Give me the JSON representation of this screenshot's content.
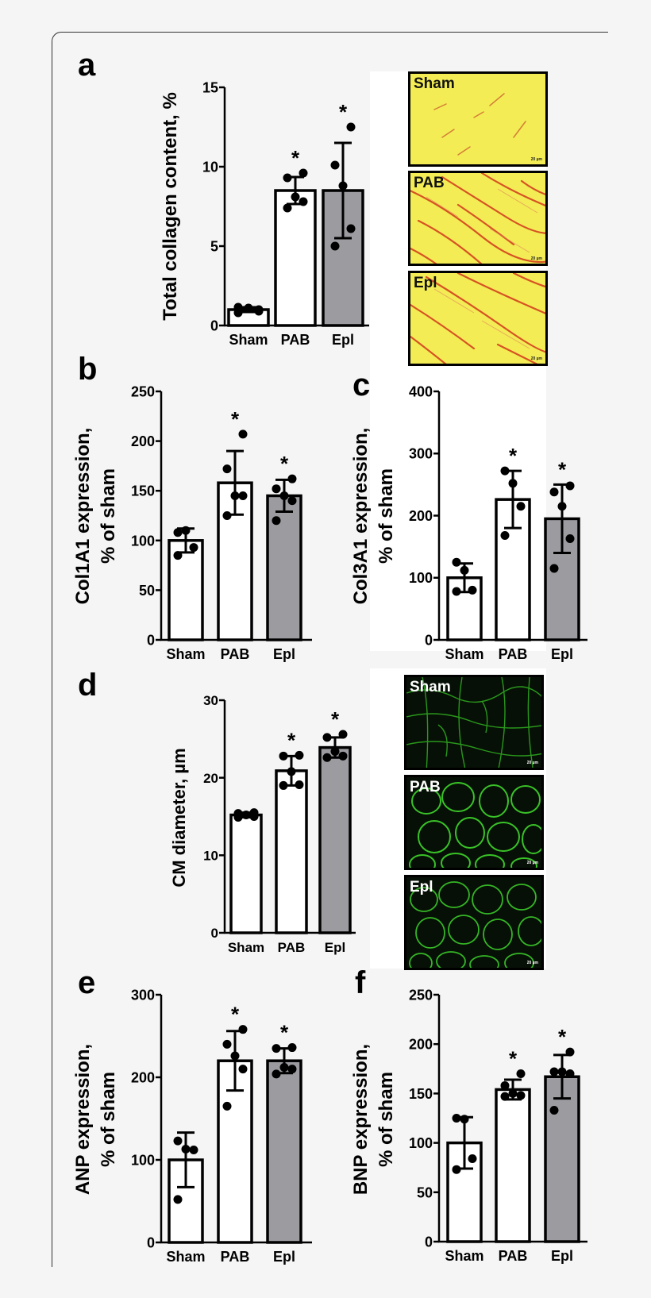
{
  "figure": {
    "panels": {
      "a": {
        "letter": "a"
      },
      "b": {
        "letter": "b"
      },
      "c": {
        "letter": "c"
      },
      "d": {
        "letter": "d"
      },
      "e": {
        "letter": "e"
      },
      "f": {
        "letter": "f"
      }
    },
    "micrographs": {
      "picrosirius": [
        {
          "label": "Sham",
          "scale": "20 µm"
        },
        {
          "label": "PAB",
          "scale": "20 µm"
        },
        {
          "label": "Epl",
          "scale": "20 µm"
        }
      ],
      "wga": [
        {
          "label": "Sham",
          "scale": "20 µm"
        },
        {
          "label": "PAB",
          "scale": "20 µm"
        },
        {
          "label": "Epl",
          "scale": "20 µm"
        }
      ]
    },
    "colors": {
      "bar_white": "#ffffff",
      "bar_gray": "#9c9ba0",
      "axis": "#000000",
      "background": "#f5f5f5",
      "picro_bg": "#f3ec55",
      "collagen_red": "#d2391b",
      "wga_green": "#3fd62c"
    }
  },
  "chart_data": [
    {
      "id": "a",
      "type": "bar",
      "title": "",
      "xlabel": "",
      "ylabel": "Total collagen content, %",
      "categories": [
        "Sham",
        "PAB",
        "Epl"
      ],
      "values": [
        1.0,
        8.5,
        8.5
      ],
      "sd": [
        0.15,
        0.85,
        3.0
      ],
      "points": [
        [
          0.8,
          1.0,
          1.1,
          1.15,
          0.9
        ],
        [
          7.4,
          7.8,
          8.1,
          9.3,
          9.6
        ],
        [
          5.0,
          6.1,
          8.8,
          10.1,
          12.5
        ]
      ],
      "significant": [
        false,
        true,
        true
      ],
      "bar_fill": [
        "#ffffff",
        "#ffffff",
        "#9c9ba0"
      ],
      "ylim": [
        0,
        15
      ],
      "yticks": [
        0,
        5,
        10,
        15
      ],
      "grid": false,
      "legend": "none"
    },
    {
      "id": "b",
      "type": "bar",
      "title": "",
      "xlabel": "",
      "ylabel": "Col1A1 expression, % of sham",
      "categories": [
        "Sham",
        "PAB",
        "Epl"
      ],
      "values": [
        100,
        158,
        145
      ],
      "sd": [
        12,
        32,
        16
      ],
      "points": [
        [
          85,
          93,
          110,
          108
        ],
        [
          125,
          145,
          145,
          172,
          207
        ],
        [
          120,
          140,
          145,
          152,
          162
        ]
      ],
      "significant": [
        false,
        true,
        true
      ],
      "bar_fill": [
        "#ffffff",
        "#ffffff",
        "#9c9ba0"
      ],
      "ylim": [
        0,
        250
      ],
      "yticks": [
        0,
        50,
        100,
        150,
        200,
        250
      ],
      "grid": false,
      "legend": "none"
    },
    {
      "id": "c",
      "type": "bar",
      "title": "",
      "xlabel": "",
      "ylabel": "Col3A1 expression, % of sham",
      "categories": [
        "Sham",
        "PAB",
        "Epl"
      ],
      "values": [
        100,
        226,
        195
      ],
      "sd": [
        23,
        46,
        55
      ],
      "points": [
        [
          78,
          80,
          112,
          125
        ],
        [
          168,
          215,
          252,
          272
        ],
        [
          115,
          163,
          215,
          238,
          248
        ]
      ],
      "significant": [
        false,
        true,
        true
      ],
      "bar_fill": [
        "#ffffff",
        "#ffffff",
        "#9c9ba0"
      ],
      "ylim": [
        0,
        400
      ],
      "yticks": [
        0,
        100,
        200,
        300,
        400
      ],
      "grid": false,
      "legend": "none"
    },
    {
      "id": "d",
      "type": "bar",
      "title": "",
      "xlabel": "",
      "ylabel": "CM diameter, µm",
      "categories": [
        "Sham",
        "PAB",
        "Epl"
      ],
      "values": [
        15.2,
        20.9,
        23.9
      ],
      "sd": [
        0.3,
        1.9,
        1.3
      ],
      "points": [
        [
          14.9,
          15.0,
          15.2,
          15.4,
          15.5
        ],
        [
          19.0,
          19.1,
          20.8,
          22.8,
          22.9
        ],
        [
          22.6,
          22.8,
          23.4,
          25.2,
          25.6
        ]
      ],
      "significant": [
        false,
        true,
        true
      ],
      "bar_fill": [
        "#ffffff",
        "#ffffff",
        "#9c9ba0"
      ],
      "ylim": [
        0,
        30
      ],
      "yticks": [
        0,
        10,
        20,
        30
      ],
      "grid": false,
      "legend": "none"
    },
    {
      "id": "e",
      "type": "bar",
      "title": "",
      "xlabel": "",
      "ylabel": "ANP expression, % of sham",
      "categories": [
        "Sham",
        "PAB",
        "Epl"
      ],
      "values": [
        100,
        220,
        220
      ],
      "sd": [
        33,
        36,
        15
      ],
      "points": [
        [
          52,
          112,
          113,
          123
        ],
        [
          165,
          210,
          226,
          240,
          258
        ],
        [
          204,
          210,
          212,
          235,
          236
        ]
      ],
      "significant": [
        false,
        true,
        true
      ],
      "bar_fill": [
        "#ffffff",
        "#ffffff",
        "#9c9ba0"
      ],
      "ylim": [
        0,
        300
      ],
      "yticks": [
        0,
        100,
        200,
        300
      ],
      "grid": false,
      "legend": "none"
    },
    {
      "id": "f",
      "type": "bar",
      "title": "",
      "xlabel": "",
      "ylabel": "BNP expression, % of sham",
      "categories": [
        "Sham",
        "PAB",
        "Epl"
      ],
      "values": [
        100,
        154,
        167
      ],
      "sd": [
        26,
        10,
        22
      ],
      "points": [
        [
          73,
          84,
          124,
          125
        ],
        [
          147,
          148,
          150,
          158,
          170
        ],
        [
          133,
          170,
          172,
          172,
          192
        ]
      ],
      "significant": [
        false,
        true,
        true
      ],
      "bar_fill": [
        "#ffffff",
        "#ffffff",
        "#9c9ba0"
      ],
      "ylim": [
        0,
        250
      ],
      "yticks": [
        0,
        50,
        100,
        150,
        200,
        250
      ],
      "grid": false,
      "legend": "none"
    }
  ]
}
